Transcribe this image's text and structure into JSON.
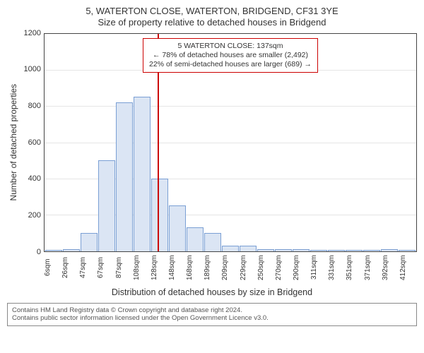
{
  "title_line1": "5, WATERTON CLOSE, WATERTON, BRIDGEND, CF31 3YE",
  "title_line2": "Size of property relative to detached houses in Bridgend",
  "y_axis_label": "Number of detached properties",
  "x_axis_label": "Distribution of detached houses by size in Bridgend",
  "chart": {
    "type": "histogram",
    "ylim": [
      0,
      1200
    ],
    "ytick_step": 200,
    "bar_fill": "#dbe5f4",
    "bar_border": "#7a9fd4",
    "grid_color": "#707070",
    "plot_border_color": "#444444",
    "categories": [
      "6sqm",
      "26sqm",
      "47sqm",
      "67sqm",
      "87sqm",
      "108sqm",
      "128sqm",
      "148sqm",
      "168sqm",
      "189sqm",
      "209sqm",
      "229sqm",
      "250sqm",
      "270sqm",
      "290sqm",
      "311sqm",
      "331sqm",
      "351sqm",
      "371sqm",
      "392sqm",
      "412sqm"
    ],
    "values": [
      5,
      10,
      100,
      500,
      820,
      850,
      400,
      250,
      130,
      100,
      30,
      30,
      10,
      10,
      10,
      5,
      5,
      5,
      5,
      10,
      5
    ]
  },
  "marker": {
    "color": "#cc0000",
    "position_pct": 30.5,
    "annotation_line1": "5 WATERTON CLOSE: 137sqm",
    "annotation_line2": "← 78% of detached houses are smaller (2,492)",
    "annotation_line3": "22% of semi-detached houses are larger (689) →"
  },
  "footer_line1": "Contains HM Land Registry data © Crown copyright and database right 2024.",
  "footer_line2": "Contains public sector information licensed under the Open Government Licence v3.0."
}
